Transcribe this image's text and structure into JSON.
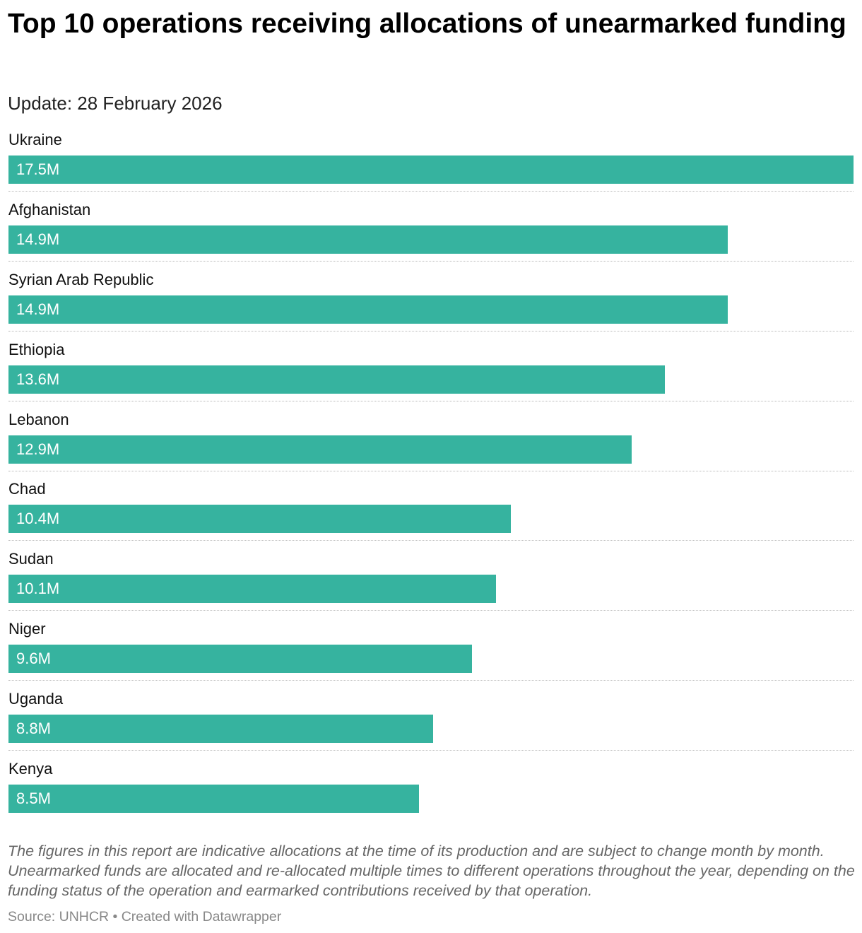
{
  "header": {
    "title": "Top 10 operations receiving allocations of unearmarked funding",
    "subtitle": "Update: 28 February 2026"
  },
  "chart_data": {
    "type": "bar",
    "orientation": "horizontal",
    "title": "Top 10 operations receiving allocations of unearmarked funding",
    "subtitle": "Update: 28 February 2026",
    "unit": "USD millions",
    "categories": [
      "Ukraine",
      "Afghanistan",
      "Syrian Arab Republic",
      "Ethiopia",
      "Lebanon",
      "Chad",
      "Sudan",
      "Niger",
      "Uganda",
      "Kenya"
    ],
    "values": [
      17.5,
      14.9,
      14.9,
      13.6,
      12.9,
      10.4,
      10.1,
      9.6,
      8.8,
      8.5
    ],
    "value_labels": [
      "17.5M",
      "14.9M",
      "14.9M",
      "13.6M",
      "12.9M",
      "10.4M",
      "10.1M",
      "9.6M",
      "8.8M",
      "8.5M"
    ],
    "xlim": [
      0,
      17.5
    ],
    "bar_color": "#36b39f",
    "value_label_color": "#ffffff"
  },
  "footer": {
    "note": "The figures in this report are indicative allocations at the time of its production and are subject to change month by month. Unearmarked funds are allocated and re-allocated multiple times to different operations throughout the year, depending on the funding status of the operation and earmarked contributions received by that operation.",
    "source": "Source: UNHCR • Created with Datawrapper"
  }
}
